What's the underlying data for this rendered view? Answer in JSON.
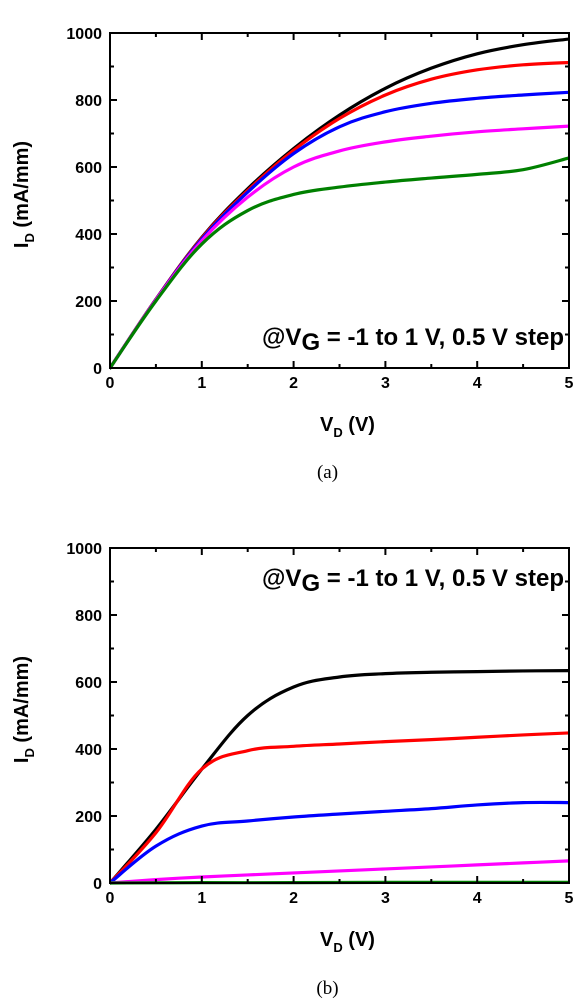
{
  "chart_data": [
    {
      "id": "a",
      "type": "line",
      "caption": "(a)",
      "xlabel": "V",
      "xlabel_sub": "D",
      "xlabel_unit": " (V)",
      "ylabel": "I",
      "ylabel_sub": "D",
      "ylabel_unit": " (mA/mm)",
      "annotation": {
        "prefix": "@V",
        "sub": "G",
        "text": " = -1 to 1 V, 0.5 V step",
        "position": "bottom-right"
      },
      "xlim": [
        0,
        5
      ],
      "ylim": [
        0,
        1000
      ],
      "xticks": [
        "0",
        "1",
        "2",
        "3",
        "4",
        "5"
      ],
      "yticks": [
        "0",
        "200",
        "400",
        "600",
        "800",
        "1000"
      ],
      "series": [
        {
          "color": "#000000",
          "x": [
            0,
            0.5,
            1,
            1.5,
            2,
            2.5,
            3,
            3.5,
            4,
            4.5,
            5
          ],
          "values": [
            0,
            205,
            390,
            535,
            655,
            755,
            835,
            895,
            938,
            965,
            982
          ]
        },
        {
          "color": "#ff0000",
          "x": [
            0,
            0.5,
            1,
            1.5,
            2,
            2.5,
            3,
            3.5,
            4,
            4.5,
            5
          ],
          "values": [
            0,
            205,
            388,
            530,
            650,
            745,
            815,
            862,
            890,
            905,
            912
          ]
        },
        {
          "color": "#0000ff",
          "x": [
            0,
            0.5,
            1,
            1.5,
            2,
            2.5,
            3,
            3.5,
            4,
            4.5,
            5
          ],
          "values": [
            0,
            204,
            385,
            525,
            640,
            720,
            765,
            790,
            805,
            815,
            823
          ]
        },
        {
          "color": "#ff00ff",
          "x": [
            0,
            0.5,
            1,
            1.5,
            2,
            2.5,
            3,
            3.5,
            4,
            4.5,
            5
          ],
          "values": [
            0,
            203,
            380,
            510,
            600,
            648,
            675,
            692,
            705,
            714,
            722
          ]
        },
        {
          "color": "#008000",
          "x": [
            0,
            0.5,
            1,
            1.5,
            2,
            2.5,
            3,
            3.5,
            4,
            4.5,
            5
          ],
          "values": [
            0,
            200,
            370,
            470,
            518,
            540,
            555,
            567,
            578,
            592,
            627
          ]
        }
      ]
    },
    {
      "id": "b",
      "type": "line",
      "caption": "(b)",
      "xlabel": "V",
      "xlabel_sub": "D",
      "xlabel_unit": " (V)",
      "ylabel": "I",
      "ylabel_sub": "D",
      "ylabel_unit": " (mA/mm)",
      "annotation": {
        "prefix": "@V",
        "sub": "G",
        "text": " = -1 to 1 V, 0.5 V step",
        "position": "top-right"
      },
      "xlim": [
        0,
        5
      ],
      "ylim": [
        0,
        1000
      ],
      "xticks": [
        "0",
        "1",
        "2",
        "3",
        "4",
        "5"
      ],
      "yticks": [
        "0",
        "200",
        "400",
        "600",
        "800",
        "1000"
      ],
      "series": [
        {
          "color": "#000000",
          "x": [
            0,
            0.5,
            1,
            1.5,
            2,
            2.5,
            3,
            3.5,
            4,
            4.5,
            5
          ],
          "values": [
            0,
            160,
            340,
            500,
            585,
            615,
            625,
            629,
            631,
            633,
            634
          ]
        },
        {
          "color": "#ff0000",
          "x": [
            0,
            0.5,
            1,
            1.5,
            2,
            2.5,
            3,
            3.5,
            4,
            4.5,
            5
          ],
          "values": [
            0,
            150,
            340,
            395,
            408,
            415,
            422,
            428,
            435,
            442,
            448
          ]
        },
        {
          "color": "#0000ff",
          "x": [
            0,
            0.5,
            1,
            1.5,
            2,
            2.5,
            3,
            3.5,
            4,
            4.5,
            5
          ],
          "values": [
            0,
            110,
            170,
            185,
            197,
            206,
            214,
            222,
            233,
            240,
            240
          ]
        },
        {
          "color": "#ff00ff",
          "x": [
            0,
            0.5,
            1,
            1.5,
            2,
            2.5,
            3,
            3.5,
            4,
            4.5,
            5
          ],
          "values": [
            0,
            10,
            18,
            24,
            30,
            36,
            42,
            48,
            54,
            60,
            66
          ]
        },
        {
          "color": "#008000",
          "x": [
            0,
            1,
            2,
            3,
            4,
            5
          ],
          "values": [
            0,
            1,
            1,
            2,
            2,
            2
          ]
        }
      ]
    }
  ]
}
